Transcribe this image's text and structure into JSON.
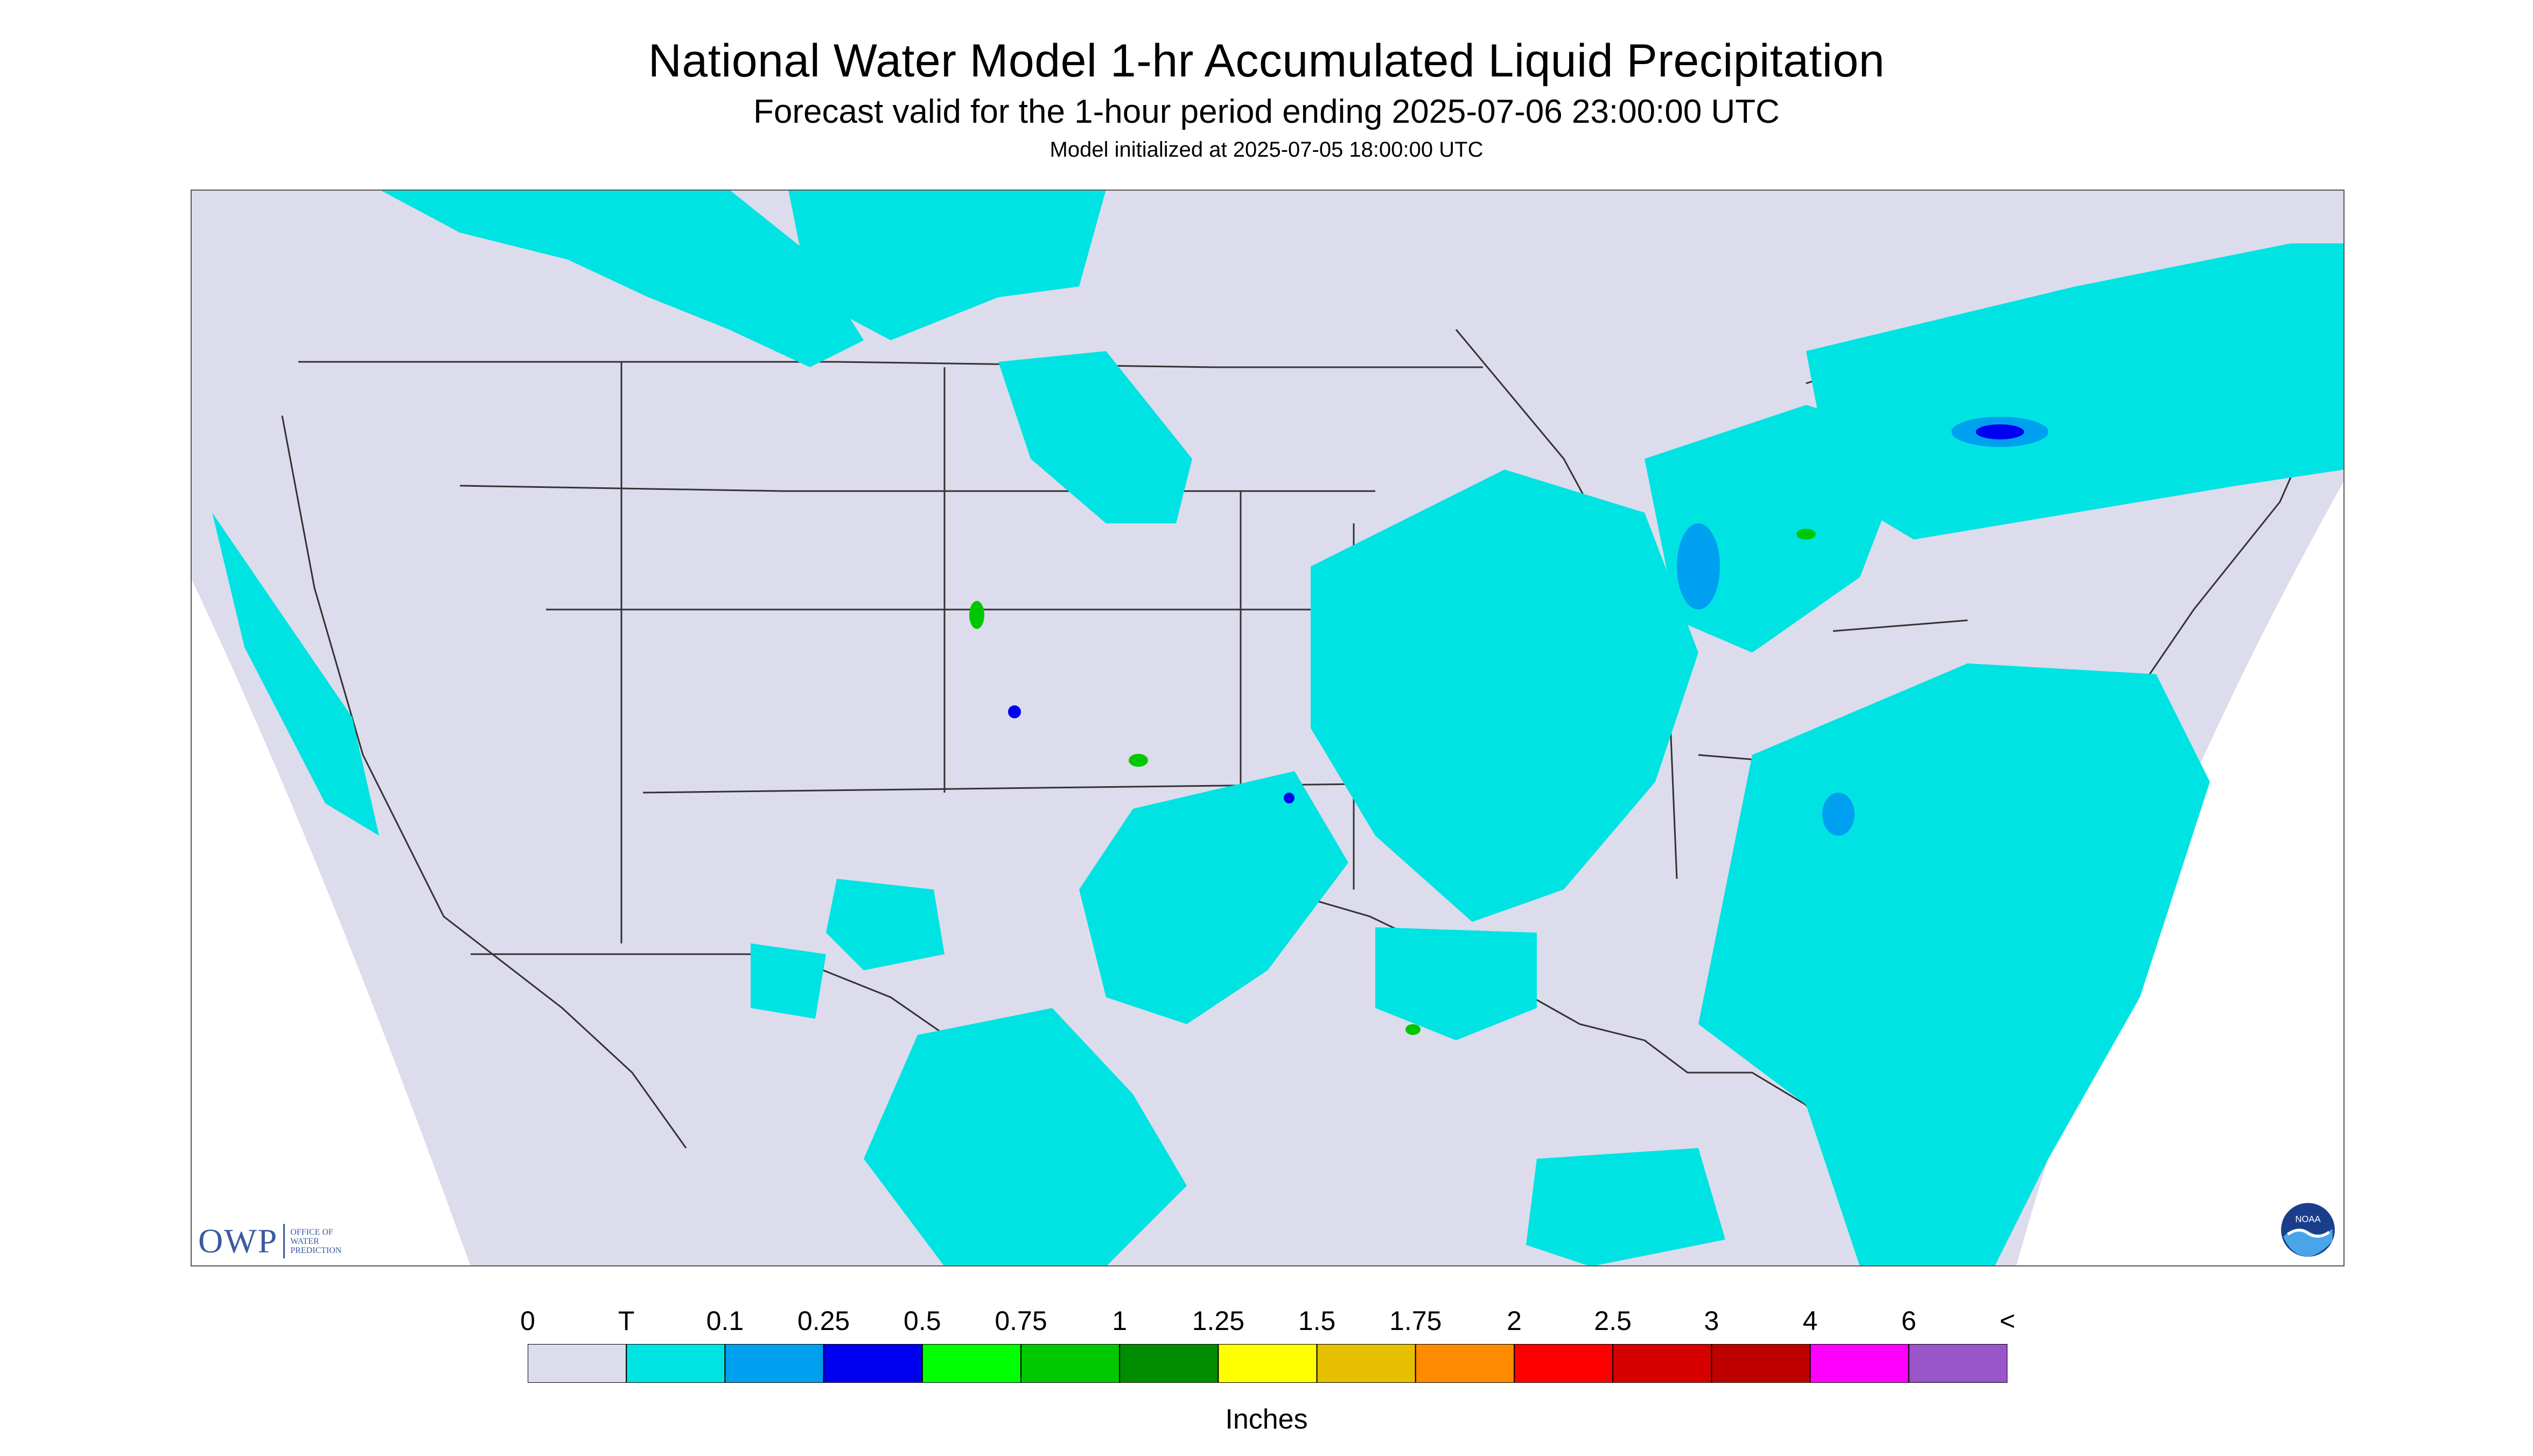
{
  "header": {
    "title": "National Water Model 1-hr Accumulated Liquid Precipitation",
    "subtitle": "Forecast valid for the 1-hour period ending 2025-07-06 23:00:00 UTC",
    "init": "Model initialized at 2025-07-05 18:00:00 UTC"
  },
  "legend": {
    "labels": [
      "0",
      "T",
      "0.1",
      "0.25",
      "0.5",
      "0.75",
      "1",
      "1.25",
      "1.5",
      "1.75",
      "2",
      "2.5",
      "3",
      "4",
      "6",
      "<"
    ],
    "colors": [
      "#dcdcec",
      "#00e3e3",
      "#00a0f0",
      "#0000f0",
      "#00ff00",
      "#00c800",
      "#008c00",
      "#ffff00",
      "#e6c000",
      "#ff8c00",
      "#ff0000",
      "#d70000",
      "#bf0000",
      "#ff00ff",
      "#9955c9"
    ],
    "units": "Inches"
  },
  "map": {
    "background_color": "#dcdcec",
    "outside_color": "#ffffff",
    "border_color": "#333333"
  },
  "logos": {
    "owp_abbrev": "OWP",
    "owp_full": [
      "OFFICE OF",
      "WATER",
      "PREDICTION"
    ],
    "noaa_text": "NOAA"
  }
}
